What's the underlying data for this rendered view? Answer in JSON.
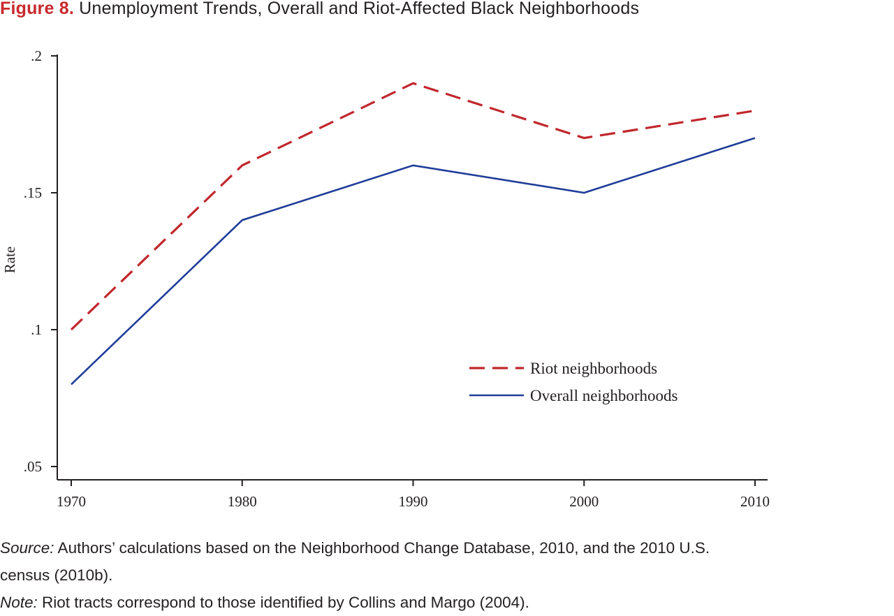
{
  "figure": {
    "label": "Figure 8.",
    "title": "Unemployment Trends, Overall and Riot-Affected Black Neighborhoods"
  },
  "chart_data": {
    "type": "line",
    "x": [
      1970,
      1980,
      1990,
      2000,
      2010
    ],
    "series": [
      {
        "name": "Riot neighborhoods",
        "values": [
          0.1,
          0.16,
          0.19,
          0.17,
          0.18
        ],
        "color": "#c1272d",
        "style": "dashed"
      },
      {
        "name": "Overall neighborhoods",
        "values": [
          0.08,
          0.14,
          0.16,
          0.15,
          0.17
        ],
        "color": "#1f3d99",
        "style": "solid"
      }
    ],
    "xlabel": "",
    "ylabel": "Rate",
    "ylim": [
      0.05,
      0.2
    ],
    "yticks": [
      0.05,
      0.1,
      0.15,
      0.2
    ],
    "ytick_labels": [
      ".05",
      ".1",
      ".15",
      ".2"
    ],
    "xticks": [
      1970,
      1980,
      1990,
      2000,
      2010
    ],
    "xtick_labels": [
      "1970",
      "1980",
      "1990",
      "2000",
      "2010"
    ],
    "grid": false,
    "legend_position": "lower-right"
  },
  "footnote": {
    "source_label": "Source:",
    "source_text": " Authors’ calculations based on the Neighborhood Change Database, 2010, and the 2010 U.S.",
    "source_text_2": "census (2010b).",
    "note_label": "Note:",
    "note_text": " Riot tracts correspond to those identified by Collins and Margo (2004)."
  }
}
